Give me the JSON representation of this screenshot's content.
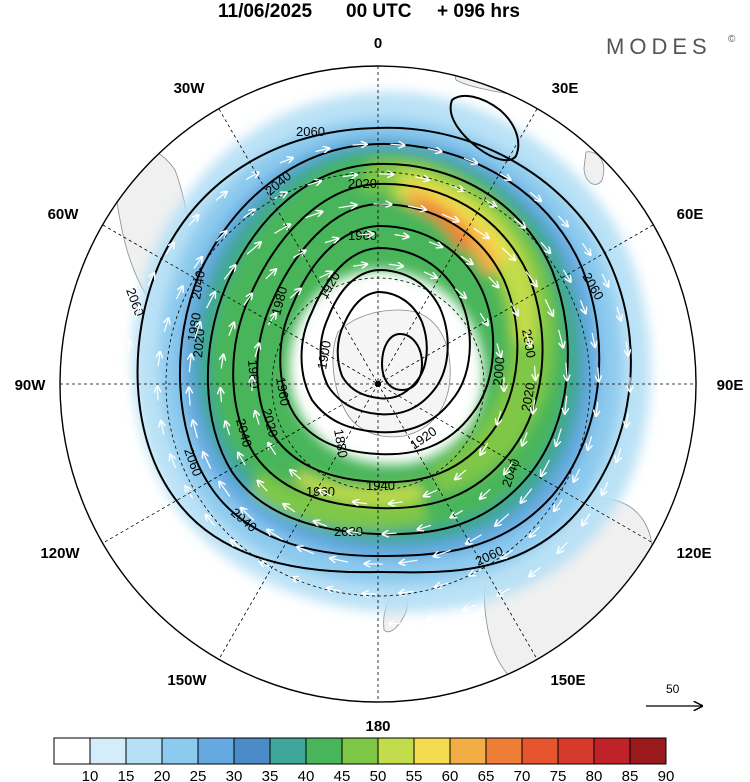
{
  "header": {
    "date": "11/06/2025",
    "time": "00 UTC",
    "lead": "+ 096 hrs",
    "brand": "MODES",
    "brand_mark": "©"
  },
  "longitude_labels": {
    "lon_0": "0",
    "lon_30e": "30E",
    "lon_60e": "60E",
    "lon_90e": "90E",
    "lon_120e": "120E",
    "lon_150e": "150E",
    "lon_180": "180",
    "lon_150w": "150W",
    "lon_120w": "120W",
    "lon_90w": "90W",
    "lon_60w": "60W",
    "lon_30w": "30W"
  },
  "contours": {
    "c1": "2060",
    "c2": "2040",
    "c3": "2020",
    "c4": "1960",
    "c5": "1920",
    "c6": "1900",
    "c7": "1880",
    "c8": "1940",
    "c9": "1960",
    "c10": "2020",
    "c11": "2040",
    "c12": "2060",
    "c13": "2000",
    "c14": "2020",
    "c15": "2040",
    "c16": "2060",
    "c17": "2060",
    "c18": "2020",
    "c19": "2040",
    "c20": "1980",
    "c21": "1960",
    "c22": "1920",
    "c23": "2060",
    "c24": "2040",
    "c25": "2020",
    "c26": "1960",
    "c27": "2000",
    "c28": "1980"
  },
  "reference_vector": {
    "value": "50"
  },
  "colorbar": {
    "labels": [
      "10",
      "15",
      "20",
      "25",
      "30",
      "35",
      "40",
      "45",
      "50",
      "55",
      "60",
      "65",
      "70",
      "75",
      "80",
      "85",
      "90"
    ],
    "colors": [
      "#ffffff",
      "#d3eefa",
      "#b6e0f6",
      "#8ccaee",
      "#64a9e0",
      "#4b8bc8",
      "#3fa69a",
      "#48b55a",
      "#7ec746",
      "#c2dc4c",
      "#f4dc50",
      "#f2ae45",
      "#ee7d36",
      "#e6562e",
      "#d63a2c",
      "#bf2228",
      "#9b1a1e"
    ]
  }
}
